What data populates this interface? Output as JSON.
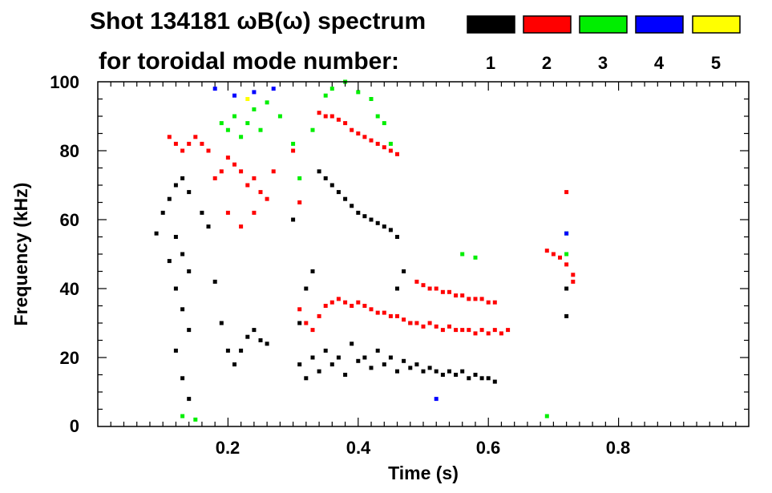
{
  "chart_data": {
    "type": "scatter",
    "title_line1": "Shot 134181 ωB(ω) spectrum",
    "title_line2": "for toroidal mode number:",
    "xlabel": "Time (s)",
    "ylabel": "Frequency (kHz)",
    "xlim": [
      0.0,
      1.0
    ],
    "ylim": [
      0,
      100
    ],
    "xticks": [
      0.2,
      0.4,
      0.6,
      0.8
    ],
    "xtick_labels": [
      "0.2",
      "0.4",
      "0.6",
      "0.8"
    ],
    "yticks": [
      0,
      20,
      40,
      60,
      80,
      100
    ],
    "ytick_labels": [
      "0",
      "20",
      "40",
      "60",
      "80",
      "100"
    ],
    "legend": [
      {
        "name": "1",
        "color": "#000000"
      },
      {
        "name": "2",
        "color": "#ff0000"
      },
      {
        "name": "3",
        "color": "#00ee00"
      },
      {
        "name": "4",
        "color": "#0000ff"
      },
      {
        "name": "5",
        "color": "#ffff00"
      }
    ],
    "series": [
      {
        "name": "n=1",
        "color": "#000000",
        "points": [
          [
            0.09,
            56
          ],
          [
            0.1,
            62
          ],
          [
            0.11,
            66
          ],
          [
            0.12,
            70
          ],
          [
            0.13,
            72
          ],
          [
            0.14,
            68
          ],
          [
            0.12,
            55
          ],
          [
            0.13,
            50
          ],
          [
            0.14,
            45
          ],
          [
            0.11,
            48
          ],
          [
            0.12,
            40
          ],
          [
            0.13,
            34
          ],
          [
            0.14,
            28
          ],
          [
            0.12,
            22
          ],
          [
            0.13,
            14
          ],
          [
            0.14,
            8
          ],
          [
            0.16,
            62
          ],
          [
            0.17,
            58
          ],
          [
            0.18,
            42
          ],
          [
            0.19,
            30
          ],
          [
            0.2,
            22
          ],
          [
            0.21,
            18
          ],
          [
            0.22,
            22
          ],
          [
            0.23,
            26
          ],
          [
            0.24,
            28
          ],
          [
            0.25,
            25
          ],
          [
            0.26,
            24
          ],
          [
            0.31,
            18
          ],
          [
            0.32,
            14
          ],
          [
            0.33,
            20
          ],
          [
            0.34,
            16
          ],
          [
            0.35,
            22
          ],
          [
            0.36,
            18
          ],
          [
            0.37,
            20
          ],
          [
            0.38,
            15
          ],
          [
            0.39,
            24
          ],
          [
            0.4,
            19
          ],
          [
            0.41,
            20
          ],
          [
            0.42,
            17
          ],
          [
            0.43,
            22
          ],
          [
            0.44,
            18
          ],
          [
            0.45,
            20
          ],
          [
            0.46,
            16
          ],
          [
            0.47,
            19
          ],
          [
            0.48,
            17
          ],
          [
            0.49,
            18
          ],
          [
            0.5,
            16
          ],
          [
            0.51,
            17
          ],
          [
            0.52,
            16
          ],
          [
            0.53,
            15
          ],
          [
            0.54,
            16
          ],
          [
            0.55,
            15
          ],
          [
            0.56,
            16
          ],
          [
            0.57,
            14
          ],
          [
            0.58,
            15
          ],
          [
            0.59,
            14
          ],
          [
            0.6,
            14
          ],
          [
            0.61,
            13
          ],
          [
            0.34,
            74
          ],
          [
            0.35,
            72
          ],
          [
            0.36,
            70
          ],
          [
            0.37,
            68
          ],
          [
            0.38,
            66
          ],
          [
            0.39,
            64
          ],
          [
            0.4,
            62
          ],
          [
            0.41,
            61
          ],
          [
            0.42,
            60
          ],
          [
            0.43,
            59
          ],
          [
            0.44,
            58
          ],
          [
            0.45,
            57
          ],
          [
            0.46,
            55
          ],
          [
            0.31,
            30
          ],
          [
            0.32,
            40
          ],
          [
            0.33,
            45
          ],
          [
            0.3,
            60
          ],
          [
            0.47,
            45
          ],
          [
            0.48,
            30
          ],
          [
            0.46,
            40
          ],
          [
            0.72,
            32
          ],
          [
            0.72,
            40
          ]
        ]
      },
      {
        "name": "n=2",
        "color": "#ff0000",
        "points": [
          [
            0.11,
            84
          ],
          [
            0.12,
            82
          ],
          [
            0.13,
            80
          ],
          [
            0.14,
            82
          ],
          [
            0.15,
            84
          ],
          [
            0.16,
            82
          ],
          [
            0.17,
            80
          ],
          [
            0.18,
            72
          ],
          [
            0.19,
            74
          ],
          [
            0.2,
            78
          ],
          [
            0.21,
            76
          ],
          [
            0.22,
            74
          ],
          [
            0.23,
            70
          ],
          [
            0.24,
            72
          ],
          [
            0.25,
            68
          ],
          [
            0.2,
            62
          ],
          [
            0.22,
            58
          ],
          [
            0.24,
            62
          ],
          [
            0.26,
            66
          ],
          [
            0.27,
            74
          ],
          [
            0.31,
            34
          ],
          [
            0.32,
            30
          ],
          [
            0.33,
            28
          ],
          [
            0.34,
            32
          ],
          [
            0.35,
            35
          ],
          [
            0.36,
            36
          ],
          [
            0.37,
            37
          ],
          [
            0.38,
            36
          ],
          [
            0.39,
            35
          ],
          [
            0.4,
            36
          ],
          [
            0.41,
            35
          ],
          [
            0.42,
            34
          ],
          [
            0.43,
            33
          ],
          [
            0.44,
            33
          ],
          [
            0.45,
            32
          ],
          [
            0.46,
            32
          ],
          [
            0.47,
            31
          ],
          [
            0.48,
            30
          ],
          [
            0.49,
            30
          ],
          [
            0.5,
            29
          ],
          [
            0.51,
            30
          ],
          [
            0.52,
            29
          ],
          [
            0.53,
            28
          ],
          [
            0.54,
            29
          ],
          [
            0.55,
            28
          ],
          [
            0.56,
            28
          ],
          [
            0.57,
            28
          ],
          [
            0.58,
            27
          ],
          [
            0.59,
            28
          ],
          [
            0.6,
            27
          ],
          [
            0.61,
            28
          ],
          [
            0.62,
            27
          ],
          [
            0.63,
            28
          ],
          [
            0.49,
            42
          ],
          [
            0.5,
            41
          ],
          [
            0.51,
            40
          ],
          [
            0.52,
            40
          ],
          [
            0.53,
            39
          ],
          [
            0.54,
            39
          ],
          [
            0.55,
            38
          ],
          [
            0.56,
            38
          ],
          [
            0.57,
            37
          ],
          [
            0.58,
            37
          ],
          [
            0.59,
            37
          ],
          [
            0.6,
            36
          ],
          [
            0.61,
            36
          ],
          [
            0.34,
            91
          ],
          [
            0.35,
            90
          ],
          [
            0.36,
            90
          ],
          [
            0.37,
            89
          ],
          [
            0.38,
            88
          ],
          [
            0.39,
            86
          ],
          [
            0.4,
            85
          ],
          [
            0.41,
            84
          ],
          [
            0.42,
            83
          ],
          [
            0.43,
            82
          ],
          [
            0.44,
            81
          ],
          [
            0.45,
            80
          ],
          [
            0.46,
            79
          ],
          [
            0.3,
            80
          ],
          [
            0.31,
            65
          ],
          [
            0.69,
            51
          ],
          [
            0.7,
            50
          ],
          [
            0.71,
            49
          ],
          [
            0.72,
            47
          ],
          [
            0.73,
            44
          ],
          [
            0.73,
            42
          ],
          [
            0.72,
            68
          ]
        ]
      },
      {
        "name": "n=3",
        "color": "#00ee00",
        "points": [
          [
            0.19,
            88
          ],
          [
            0.2,
            86
          ],
          [
            0.21,
            90
          ],
          [
            0.22,
            84
          ],
          [
            0.23,
            88
          ],
          [
            0.24,
            92
          ],
          [
            0.25,
            86
          ],
          [
            0.26,
            94
          ],
          [
            0.28,
            90
          ],
          [
            0.3,
            82
          ],
          [
            0.31,
            72
          ],
          [
            0.33,
            86
          ],
          [
            0.35,
            96
          ],
          [
            0.36,
            98
          ],
          [
            0.38,
            100
          ],
          [
            0.4,
            97
          ],
          [
            0.42,
            95
          ],
          [
            0.43,
            90
          ],
          [
            0.44,
            88
          ],
          [
            0.45,
            82
          ],
          [
            0.56,
            50
          ],
          [
            0.58,
            49
          ],
          [
            0.72,
            50
          ],
          [
            0.72,
            56
          ],
          [
            0.69,
            3
          ],
          [
            0.13,
            3
          ],
          [
            0.15,
            2
          ]
        ]
      },
      {
        "name": "n=4",
        "color": "#0000ff",
        "points": [
          [
            0.18,
            98
          ],
          [
            0.21,
            96
          ],
          [
            0.24,
            97
          ],
          [
            0.27,
            98
          ],
          [
            0.52,
            8
          ],
          [
            0.72,
            56
          ]
        ]
      },
      {
        "name": "n=5",
        "color": "#ffff00",
        "points": [
          [
            0.23,
            95
          ]
        ]
      }
    ]
  }
}
